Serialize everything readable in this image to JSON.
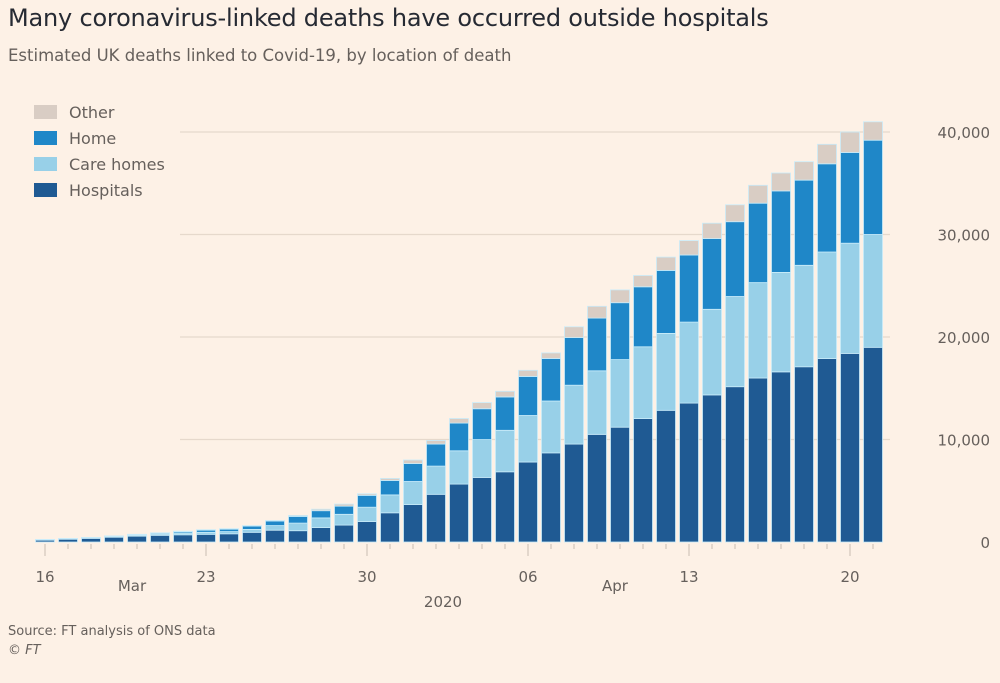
{
  "chart_data": {
    "type": "bar",
    "stacked": true,
    "title": "Many coronavirus-linked deaths have occurred outside hospitals",
    "subtitle": "Estimated UK deaths linked to Covid-19, by location of death",
    "xlabel": "2020",
    "ylabel": "",
    "ylim": [
      0,
      40000
    ],
    "yticks": [
      0,
      10000,
      20000,
      30000,
      40000
    ],
    "ytick_labels": [
      "0",
      "10,000",
      "20,000",
      "30,000",
      "40,000"
    ],
    "grid": true,
    "y_axis_side": "right",
    "legend_position": "top-left",
    "categories": [
      "Mar 16",
      "Mar 17",
      "Mar 18",
      "Mar 19",
      "Mar 20",
      "Mar 21",
      "Mar 22",
      "Mar 23",
      "Mar 24",
      "Mar 25",
      "Mar 26",
      "Mar 27",
      "Mar 28",
      "Mar 29",
      "Mar 30",
      "Mar 31",
      "Apr 1",
      "Apr 2",
      "Apr 3",
      "Apr 4",
      "Apr 5",
      "Apr 6",
      "Apr 7",
      "Apr 8",
      "Apr 9",
      "Apr 10",
      "Apr 11",
      "Apr 12",
      "Apr 13",
      "Apr 14",
      "Apr 15",
      "Apr 16",
      "Apr 17",
      "Apr 18",
      "Apr 19",
      "Apr 20",
      "Apr 21"
    ],
    "x_tick_labels": [
      {
        "index": 0,
        "label": "16"
      },
      {
        "index": 7,
        "label": "23"
      },
      {
        "index": 14,
        "label": "30"
      },
      {
        "index": 21,
        "label": "06"
      },
      {
        "index": 28,
        "label": "13"
      },
      {
        "index": 35,
        "label": "20"
      }
    ],
    "month_labels": [
      {
        "index": 4,
        "label": "Mar"
      },
      {
        "index": 25,
        "label": "Apr"
      }
    ],
    "year_label": {
      "index": 17,
      "label": "2020"
    },
    "series": [
      {
        "name": "Hospitals",
        "color": "#1f5a93",
        "values": [
          200,
          280,
          360,
          470,
          570,
          650,
          700,
          750,
          800,
          950,
          1150,
          1100,
          1400,
          1650,
          2000,
          2850,
          3650,
          4650,
          5650,
          6300,
          6850,
          7800,
          8700,
          9550,
          10500,
          11200,
          12050,
          12850,
          13550,
          14350,
          15150,
          16000,
          16600,
          17100,
          17900,
          18400,
          19000
        ]
      },
      {
        "name": "Care homes",
        "color": "#98d0e8",
        "values": [
          20,
          30,
          40,
          60,
          90,
          120,
          170,
          200,
          220,
          280,
          450,
          750,
          950,
          1050,
          1400,
          1750,
          2250,
          2750,
          3250,
          3700,
          4050,
          4550,
          5050,
          5750,
          6200,
          6600,
          7000,
          7500,
          7900,
          8350,
          8800,
          9300,
          9700,
          9900,
          10400,
          10750,
          11000
        ]
      },
      {
        "name": "Home",
        "color": "#1f87c8",
        "values": [
          20,
          30,
          40,
          60,
          80,
          120,
          160,
          220,
          250,
          320,
          450,
          650,
          700,
          800,
          1150,
          1400,
          1750,
          2150,
          2700,
          3000,
          3250,
          3800,
          4150,
          4650,
          5150,
          5550,
          5850,
          6150,
          6550,
          6900,
          7300,
          7750,
          7950,
          8300,
          8600,
          8850,
          9200
        ]
      },
      {
        "name": "Other",
        "color": "#d9cdc4",
        "values": [
          10,
          10,
          10,
          10,
          10,
          10,
          20,
          30,
          30,
          50,
          50,
          100,
          150,
          200,
          150,
          200,
          350,
          350,
          450,
          600,
          550,
          600,
          550,
          1050,
          1150,
          1250,
          1100,
          1300,
          1400,
          1500,
          1650,
          1750,
          1750,
          1800,
          1900,
          2000,
          1800
        ]
      }
    ]
  },
  "legend": {
    "items": [
      {
        "label": "Other",
        "color": "#d9cdc4"
      },
      {
        "label": "Home",
        "color": "#1f87c8"
      },
      {
        "label": "Care homes",
        "color": "#98d0e8"
      },
      {
        "label": "Hospitals",
        "color": "#1f5a93"
      }
    ]
  },
  "footer": {
    "source": "Source: FT analysis of ONS data",
    "copyright": "© FT"
  }
}
